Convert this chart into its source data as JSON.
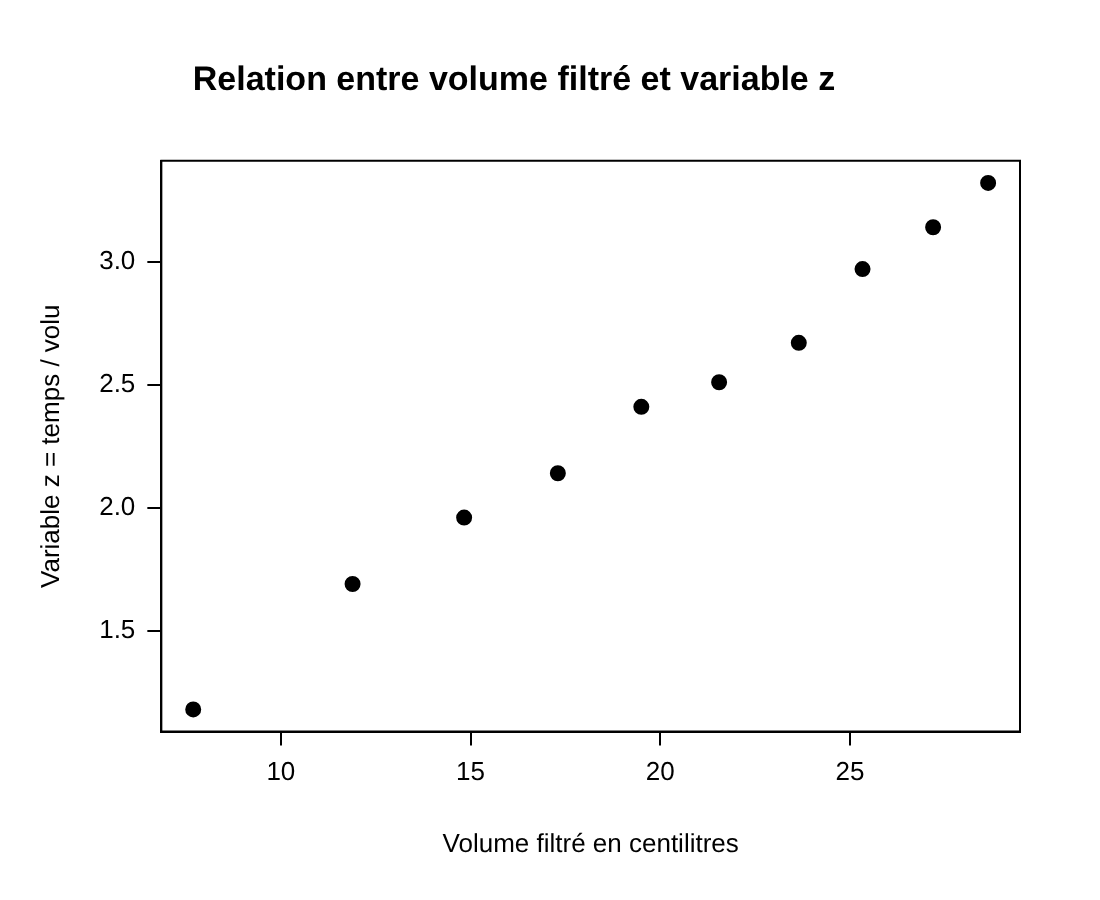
{
  "chart_data": {
    "type": "scatter",
    "title": "Relation entre volume filtré et variable z",
    "xlabel": "Volume filtré en centilitres",
    "ylabel": "Variable z = temps / volu",
    "x": [
      7.69,
      11.89,
      14.83,
      17.3,
      19.5,
      21.55,
      23.65,
      25.33,
      27.19,
      28.64
    ],
    "series": [
      {
        "color": "#000000",
        "values": [
          1.18,
          1.69,
          1.96,
          2.14,
          2.41,
          2.51,
          2.67,
          2.97,
          3.14,
          3.32
        ]
      }
    ],
    "xlim": [
      6.85,
      29.48
    ],
    "xticks": [
      10,
      15,
      20,
      25
    ],
    "ylim": [
      1.09,
      3.41
    ],
    "yticks": [
      1.5,
      {
        "value": 2,
        "label": "2.0"
      },
      2.5,
      {
        "value": 3,
        "label": "3.0"
      }
    ],
    "grid": false,
    "legend": false,
    "marker": "circle"
  }
}
